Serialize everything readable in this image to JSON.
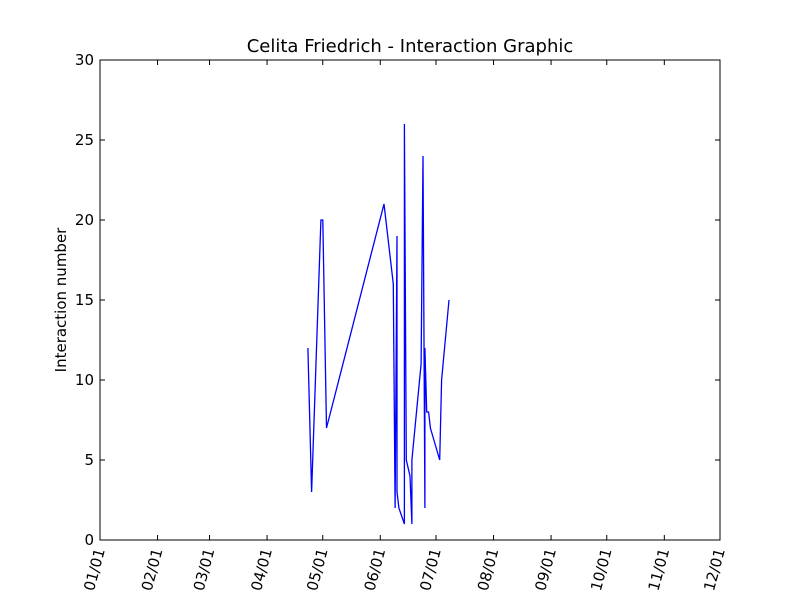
{
  "chart_data": {
    "type": "line",
    "title": "Celita Friedrich - Interaction Graphic",
    "xlabel": "",
    "ylabel": "Interaction number",
    "xlim": [
      "01/01",
      "12/01"
    ],
    "ylim": [
      0,
      30
    ],
    "grid": false,
    "x_ticks": [
      "01/01",
      "02/01",
      "03/01",
      "04/01",
      "05/01",
      "06/01",
      "07/01",
      "08/01",
      "09/01",
      "10/01",
      "11/01",
      "12/01"
    ],
    "y_ticks": [
      "0",
      "5",
      "10",
      "15",
      "20",
      "25",
      "30"
    ],
    "series": [
      {
        "color": "#0000ff",
        "x": [
          "04/23",
          "04/25",
          "04/30",
          "05/01",
          "05/03",
          "06/03",
          "06/08",
          "06/09",
          "06/10",
          "06/10",
          "06/11",
          "06/14",
          "06/14",
          "06/15",
          "06/15",
          "06/17",
          "06/18",
          "06/18",
          "06/23",
          "06/24",
          "06/25",
          "06/25",
          "06/26",
          "06/27",
          "06/28",
          "07/03",
          "07/04",
          "07/04",
          "07/08"
        ],
        "y": [
          12,
          3,
          20,
          20,
          7,
          21,
          16,
          2,
          19,
          3,
          2,
          1,
          26,
          5,
          5,
          4,
          1,
          5,
          11,
          24,
          2,
          12,
          8,
          8,
          7,
          5,
          10,
          10,
          15
        ]
      }
    ]
  }
}
